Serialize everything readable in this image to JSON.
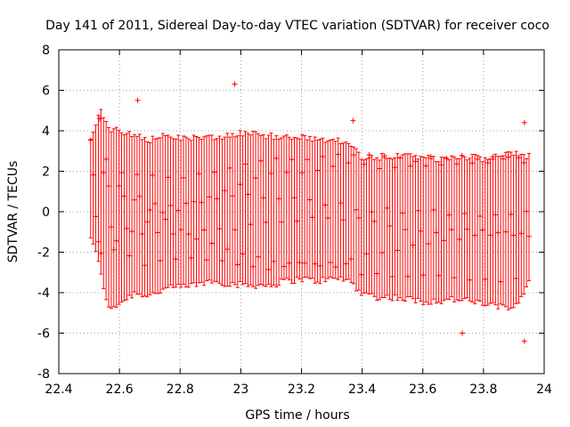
{
  "chart_data": {
    "type": "scatter",
    "style": "errorbars",
    "title": "Day 141 of 2011, Sidereal Day-to-day VTEC variation (SDTVAR) for receiver coco",
    "xlabel": "GPS time / hours",
    "ylabel": "SDTVAR / TECUs",
    "xlim": [
      22.4,
      24
    ],
    "ylim": [
      -8,
      8
    ],
    "xticks": [
      22.4,
      22.6,
      22.8,
      23,
      23.2,
      23.4,
      23.6,
      23.8,
      24
    ],
    "yticks": [
      -8,
      -6,
      -4,
      -2,
      0,
      2,
      4,
      6,
      8
    ],
    "xtick_labels": [
      "22.4",
      "22.6",
      "22.8",
      "23",
      "23.2",
      "23.4",
      "23.6",
      "23.8",
      "24"
    ],
    "ytick_labels": [
      "-8",
      "-6",
      "-4",
      "-2",
      "0",
      "2",
      "4",
      "6",
      "8"
    ],
    "grid": true,
    "color": "#ff0000",
    "sampling": {
      "x_start": 22.505,
      "x_end": 23.955,
      "step": 0.0085
    },
    "tracks": [
      {
        "name": "upper",
        "points": [
          [
            22.5,
            3.6
          ],
          [
            22.55,
            2.6
          ],
          [
            22.6,
            1.8
          ],
          [
            22.68,
            1.9
          ],
          [
            22.75,
            1.6
          ],
          [
            22.85,
            1.8
          ],
          [
            23.0,
            2.4
          ],
          [
            23.1,
            2.5
          ],
          [
            23.2,
            2.6
          ],
          [
            23.35,
            2.8
          ],
          [
            23.4,
            2.7
          ],
          [
            23.6,
            2.6
          ],
          [
            23.8,
            2.7
          ],
          [
            23.95,
            2.5
          ]
        ]
      },
      {
        "name": "mid-upper",
        "points": [
          [
            22.5,
            1.8
          ],
          [
            22.55,
            1.4
          ],
          [
            22.62,
            0.8
          ],
          [
            22.68,
            0.6
          ],
          [
            22.75,
            0.2
          ],
          [
            22.85,
            0.4
          ],
          [
            23.0,
            0.8
          ],
          [
            23.1,
            0.7
          ],
          [
            23.2,
            0.6
          ],
          [
            23.3,
            0.4
          ],
          [
            23.4,
            0.1
          ],
          [
            23.6,
            0.0
          ],
          [
            23.8,
            -0.1
          ],
          [
            23.95,
            -0.1
          ]
        ]
      },
      {
        "name": "mid",
        "points": [
          [
            22.5,
            0.2
          ],
          [
            22.55,
            -0.6
          ],
          [
            22.62,
            -0.9
          ],
          [
            22.7,
            -1.1
          ],
          [
            22.8,
            -1.0
          ],
          [
            22.95,
            -0.9
          ],
          [
            23.1,
            -0.5
          ],
          [
            23.2,
            -0.4
          ],
          [
            23.3,
            -0.3
          ],
          [
            23.4,
            -0.4
          ],
          [
            23.5,
            -0.7
          ],
          [
            23.6,
            -0.9
          ],
          [
            23.8,
            -1.0
          ],
          [
            23.95,
            -1.2
          ]
        ]
      },
      {
        "name": "low",
        "points": [
          [
            22.5,
            -1.2
          ],
          [
            22.55,
            -1.8
          ],
          [
            22.62,
            -2.2
          ],
          [
            22.7,
            -2.6
          ],
          [
            22.8,
            -2.4
          ],
          [
            22.9,
            -2.3
          ],
          [
            23.0,
            -2.6
          ],
          [
            23.1,
            -3.0
          ],
          [
            23.2,
            -2.6
          ],
          [
            23.3,
            -2.4
          ],
          [
            23.4,
            -3.0
          ],
          [
            23.6,
            -3.2
          ],
          [
            23.8,
            -3.3
          ],
          [
            23.95,
            -3.4
          ]
        ]
      },
      {
        "name": "diagonal-up",
        "points": [
          [
            22.5,
            -2.6
          ],
          [
            22.6,
            -1.4
          ],
          [
            22.7,
            -0.4
          ],
          [
            22.8,
            0.2
          ],
          [
            22.9,
            0.8
          ],
          [
            23.0,
            1.4
          ],
          [
            23.1,
            1.8
          ],
          [
            23.2,
            2.0
          ],
          [
            23.35,
            2.3
          ],
          [
            23.5,
            2.2
          ],
          [
            23.7,
            2.4
          ],
          [
            23.95,
            2.6
          ]
        ]
      },
      {
        "name": "diagonal-down",
        "points": [
          [
            22.55,
            2.0
          ],
          [
            22.65,
            0.6
          ],
          [
            22.75,
            -0.4
          ],
          [
            22.85,
            -1.2
          ],
          [
            22.95,
            -1.8
          ],
          [
            23.05,
            -2.2
          ],
          [
            23.15,
            -2.6
          ],
          [
            23.3,
            -2.7
          ],
          [
            23.4,
            -2.2
          ],
          [
            23.6,
            -1.6
          ],
          [
            23.8,
            -1.2
          ],
          [
            23.95,
            -0.9
          ]
        ]
      }
    ],
    "envelope": [
      [
        22.505,
        -1.4,
        3.8
      ],
      [
        22.54,
        -3.2,
        5.3
      ],
      [
        22.56,
        -5.0,
        4.3
      ],
      [
        22.6,
        -4.7,
        4.2
      ],
      [
        22.65,
        -4.2,
        3.9
      ],
      [
        22.7,
        -4.3,
        3.7
      ],
      [
        22.75,
        -4.0,
        3.9
      ],
      [
        22.8,
        -3.9,
        3.8
      ],
      [
        22.85,
        -3.8,
        3.9
      ],
      [
        22.9,
        -3.6,
        3.9
      ],
      [
        22.95,
        -3.7,
        3.9
      ],
      [
        23.0,
        -3.8,
        4.1
      ],
      [
        23.05,
        -3.8,
        4.0
      ],
      [
        23.1,
        -3.8,
        3.9
      ],
      [
        23.15,
        -3.6,
        3.9
      ],
      [
        23.2,
        -3.5,
        3.9
      ],
      [
        23.25,
        -3.6,
        3.7
      ],
      [
        23.3,
        -3.5,
        3.7
      ],
      [
        23.35,
        -3.5,
        3.6
      ],
      [
        23.4,
        -4.2,
        2.9
      ],
      [
        23.45,
        -4.4,
        2.9
      ],
      [
        23.5,
        -4.4,
        2.9
      ],
      [
        23.55,
        -4.5,
        2.9
      ],
      [
        23.6,
        -4.6,
        2.8
      ],
      [
        23.65,
        -4.6,
        2.8
      ],
      [
        23.7,
        -4.5,
        2.9
      ],
      [
        23.75,
        -4.6,
        2.9
      ],
      [
        23.8,
        -4.7,
        2.8
      ],
      [
        23.85,
        -4.9,
        2.9
      ],
      [
        23.9,
        -4.9,
        3.0
      ],
      [
        23.955,
        -3.6,
        2.9
      ]
    ],
    "outliers": [
      [
        22.98,
        6.3
      ],
      [
        22.66,
        5.5
      ],
      [
        23.37,
        4.5
      ],
      [
        23.73,
        -6.0
      ],
      [
        23.935,
        -6.4
      ],
      [
        23.935,
        4.4
      ],
      [
        22.535,
        4.6
      ]
    ]
  }
}
